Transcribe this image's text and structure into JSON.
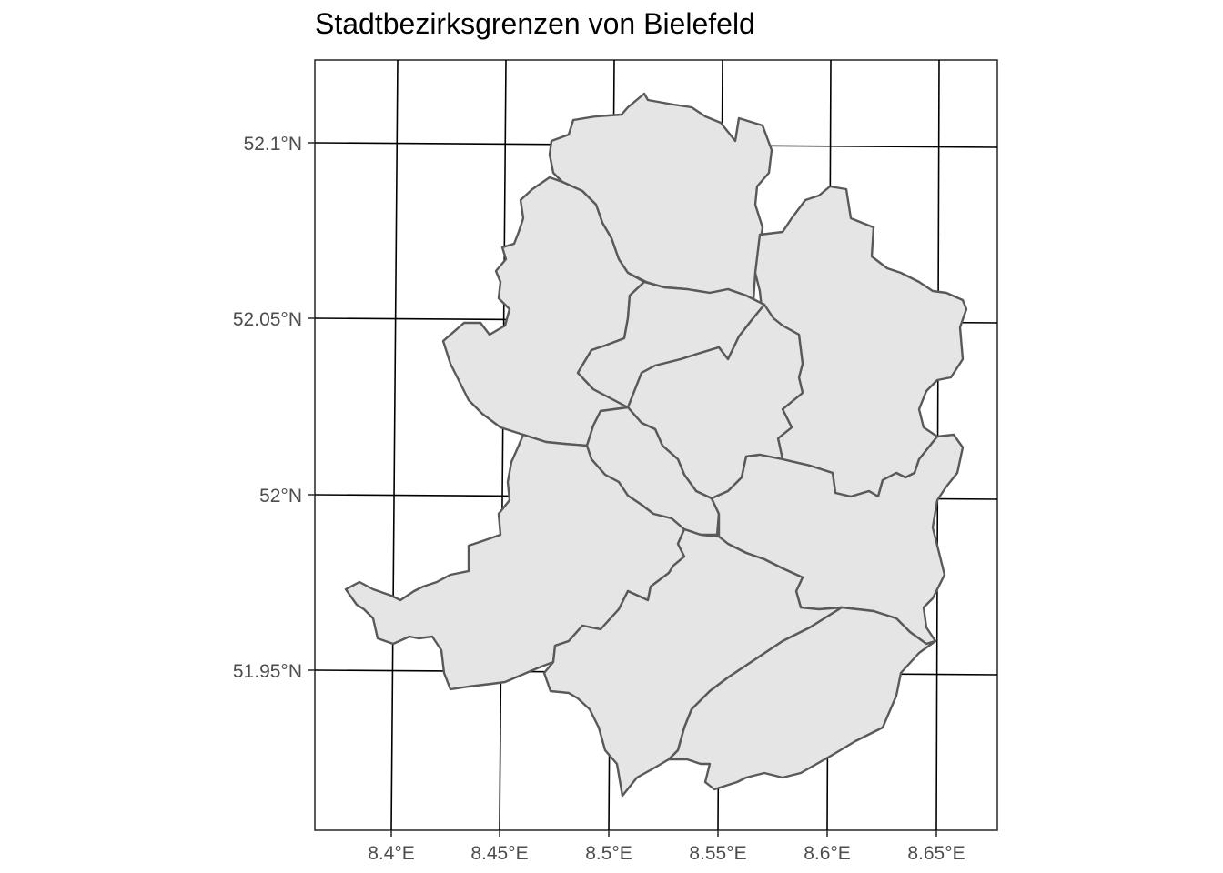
{
  "map": {
    "title": "Stadtbezirksgrenzen von Bielefeld",
    "x_tick_labels": [
      "8.4°E",
      "8.45°E",
      "8.5°E",
      "8.55°E",
      "8.6°E",
      "8.65°E"
    ],
    "y_tick_labels": [
      "52.1°N",
      "52.05°N",
      "52°N",
      "51.95°N"
    ],
    "fill_color": "#e5e5e5",
    "border_color": "#595959",
    "districts": [
      "district-north",
      "district-northwest",
      "district-northeast",
      "district-center-north",
      "district-center",
      "district-center-strip",
      "district-west",
      "district-east",
      "district-south",
      "district-southeast"
    ]
  }
}
